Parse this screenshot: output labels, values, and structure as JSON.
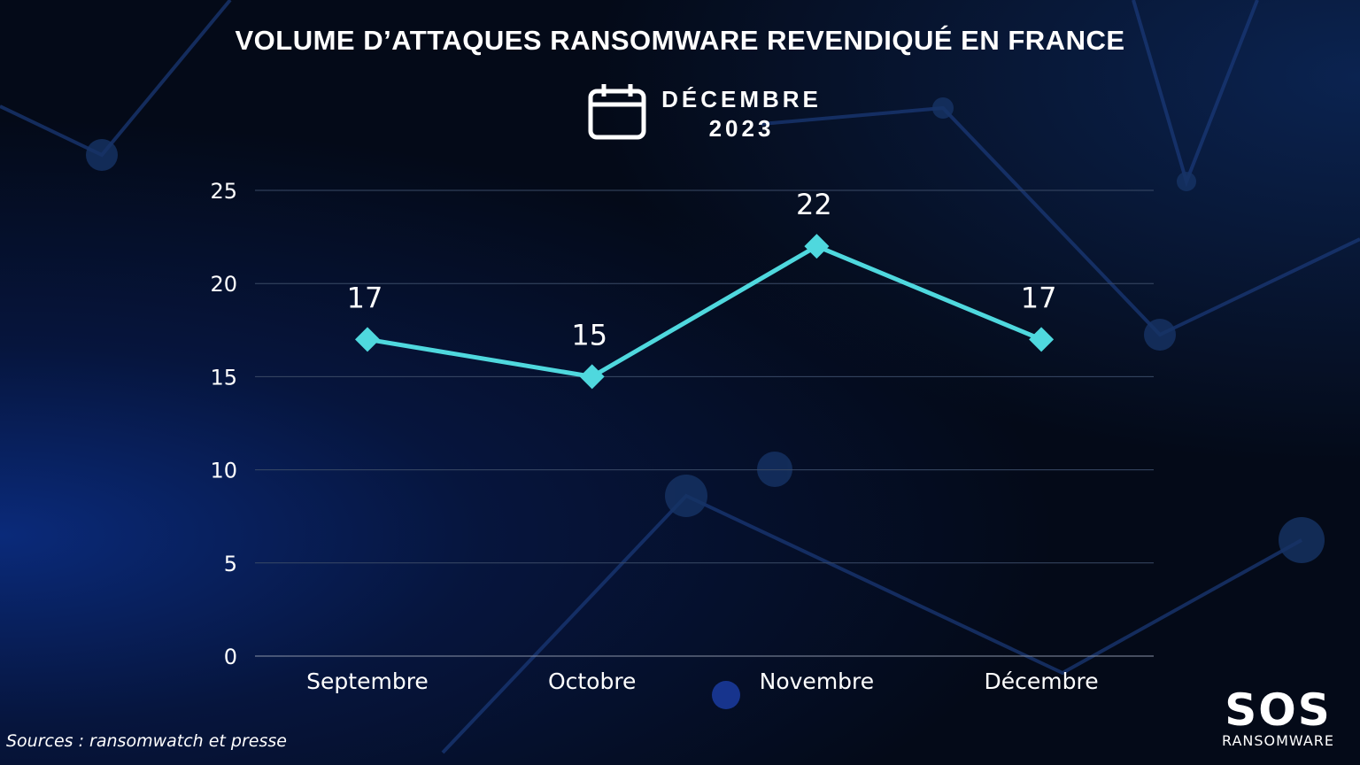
{
  "title": "VOLUME D’ATTAQUES RANSOMWARE REVENDIQUÉ EN FRANCE",
  "period": {
    "month": "DÉCEMBRE",
    "year": "2023",
    "icon": "calendar-icon"
  },
  "source": "Sources :  ransomwatch et presse",
  "logo": {
    "main": "SOS",
    "sub": "RANSOMWARE"
  },
  "colors": {
    "line": "#4fd8de",
    "grid": "#3a4a66",
    "accent": "#cc1f2a"
  },
  "chart_data": {
    "type": "line",
    "categories": [
      "Septembre",
      "Octobre",
      "Novembre",
      "Décembre"
    ],
    "values": [
      17,
      15,
      22,
      17
    ],
    "data_labels": [
      "17",
      "15",
      "22",
      "17"
    ],
    "yticks": [
      "0",
      "5",
      "10",
      "15",
      "20",
      "25"
    ],
    "ylim": [
      0,
      25
    ],
    "grid": true,
    "marker": "diamond"
  }
}
